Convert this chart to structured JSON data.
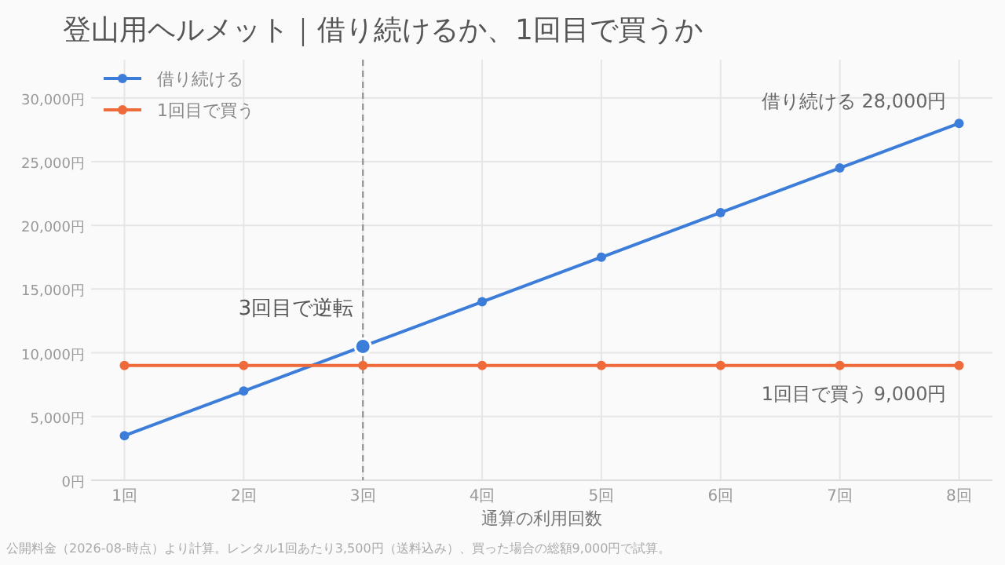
{
  "chart_data": {
    "type": "line",
    "title": "登山用ヘルメット｜借り続けるか、1回目で買うか",
    "xlabel": "通算の利用回数",
    "categories": [
      "1回",
      "2回",
      "3回",
      "4回",
      "5回",
      "6回",
      "7回",
      "8回"
    ],
    "series": [
      {
        "name": "借り続ける",
        "color": "#3b7dd8",
        "values": [
          3500,
          7000,
          10500,
          14000,
          17500,
          21000,
          24500,
          28000
        ]
      },
      {
        "name": "1回目で買う",
        "color": "#ef6a3a",
        "values": [
          9000,
          9000,
          9000,
          9000,
          9000,
          9000,
          9000,
          9000
        ]
      }
    ],
    "ylim": [
      0,
      33000
    ],
    "yticks": [
      {
        "value": 0,
        "label": "0円"
      },
      {
        "value": 5000,
        "label": "5,000円"
      },
      {
        "value": 10000,
        "label": "10,000円"
      },
      {
        "value": 15000,
        "label": "15,000円"
      },
      {
        "value": 20000,
        "label": "20,000円"
      },
      {
        "value": 25000,
        "label": "25,000円"
      },
      {
        "value": 30000,
        "label": "30,000円"
      }
    ],
    "ref_lines": [
      {
        "axis": "x",
        "value": "3回",
        "label": null,
        "color": "#999999",
        "line_style": "dashed"
      }
    ],
    "annotations": [
      {
        "text": "3回目で逆転",
        "x": "3回",
        "y": 10500
      },
      {
        "text": "借り続ける  28,000円",
        "x": "8回",
        "y": 28000
      },
      {
        "text": "1回目で買う  9,000円",
        "x": "8回",
        "y": 9000
      },
      "公開料金（2026-08-時点）より計算。レンタル1回あたり3,500円（送料込み）、買った場合の総額9,000円で試算。"
    ],
    "grid": true,
    "legend": "top left",
    "marker": "circle",
    "line_style": "solid"
  }
}
